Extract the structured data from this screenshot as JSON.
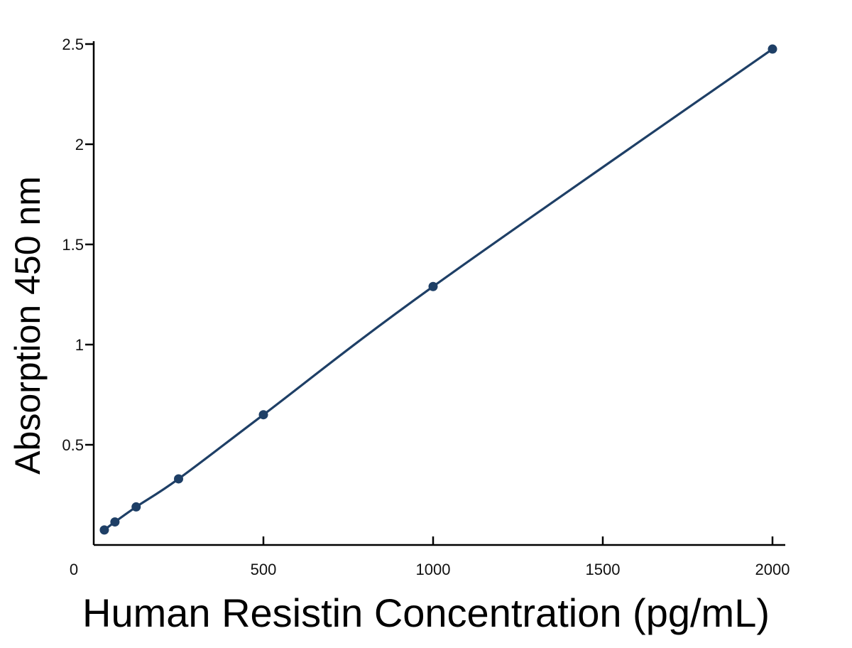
{
  "chart_data": {
    "type": "line",
    "xlabel": "Human Resistin Concentration (pg/mL)",
    "ylabel": "Absorption 450 nm",
    "xlim": [
      0,
      2000
    ],
    "ylim": [
      0,
      2.5
    ],
    "x_ticks": [
      0,
      500,
      1000,
      1500,
      2000
    ],
    "x_tick_labels": [
      "0",
      "500",
      "1000",
      "1500",
      "2000"
    ],
    "y_ticks": [
      0.5,
      1,
      1.5,
      2,
      2.5
    ],
    "y_tick_labels": [
      "0.5",
      "1",
      "1.5",
      "2",
      "2.5"
    ],
    "grid": false,
    "series": [
      {
        "x": [
          31.25,
          62.5,
          125,
          250,
          500,
          1000,
          2000
        ],
        "y": [
          0.075,
          0.115,
          0.19,
          0.33,
          0.65,
          1.29,
          2.475
        ],
        "color": "#1e3f66"
      }
    ]
  }
}
